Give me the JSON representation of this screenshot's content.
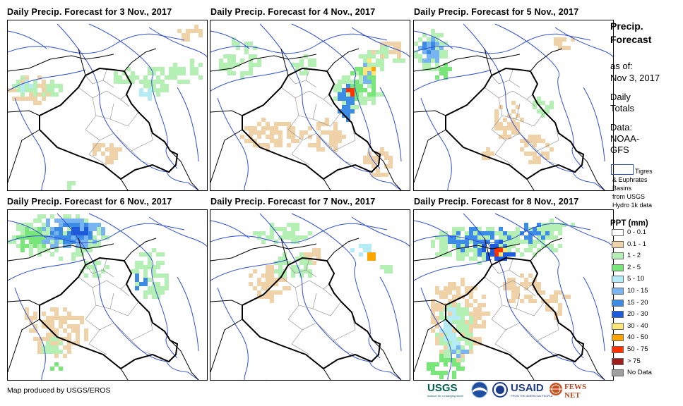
{
  "panels": [
    {
      "title": "Daily Precip. Forecast for 3 Nov., 2017"
    },
    {
      "title": "Daily Precip. Forecast for 4 Nov., 2017"
    },
    {
      "title": "Daily Precip. Forecast for 5 Nov., 2017"
    },
    {
      "title": "Daily Precip. Forecast for 6 Nov., 2017"
    },
    {
      "title": "Daily Precip. Forecast for 7 Nov., 2017"
    },
    {
      "title": "Daily Precip. Forecast for 8 Nov., 2017"
    }
  ],
  "legend": {
    "title_line1": "Precip.",
    "title_line2": "Forecast",
    "asof_label": "as of:",
    "asof_date": "Nov 3, 2017",
    "totals_line1": "Daily",
    "totals_line2": "Totals",
    "data_line1": "Data:",
    "data_line2": "NOAA-",
    "data_line3": "GFS",
    "basin_line1": "Tigres",
    "basin_line2": "& Euphrates",
    "basin_line3": "Basins",
    "basin_line4": "from USGS",
    "basin_line5": "Hydro 1k data",
    "ppt_title": "PPT (mm)",
    "classes": [
      {
        "label": "0 - 0.1",
        "color": "#ffffff"
      },
      {
        "label": "0.1 - 1",
        "color": "#f0d2a8"
      },
      {
        "label": "1 - 2",
        "color": "#b4f0b4"
      },
      {
        "label": "2 - 5",
        "color": "#78e678"
      },
      {
        "label": "5 - 10",
        "color": "#b4ebf5"
      },
      {
        "label": "10 - 15",
        "color": "#78b4f0"
      },
      {
        "label": "15 - 20",
        "color": "#3c8ce6"
      },
      {
        "label": "20 - 30",
        "color": "#1e5adc"
      },
      {
        "label": "30 - 40",
        "color": "#ffe678"
      },
      {
        "label": "40 - 50",
        "color": "#ffa500"
      },
      {
        "label": "50 - 75",
        "color": "#ff3200"
      },
      {
        "label": "> 75",
        "color": "#a01e1e"
      },
      {
        "label": "No Data",
        "color": "#a0a0a0"
      }
    ]
  },
  "credit": "Map produced by USGS/EROS",
  "logos": {
    "usgs": "USGS",
    "usgs_tag": "science for a changing world",
    "usaid": "USAID",
    "usaid_tag": "FROM THE AMERICAN PEOPLE",
    "fewsnet": "FEWS NET"
  },
  "colors": {
    "border": "#000000",
    "river": "#2f4fd0",
    "district": "#888888"
  }
}
